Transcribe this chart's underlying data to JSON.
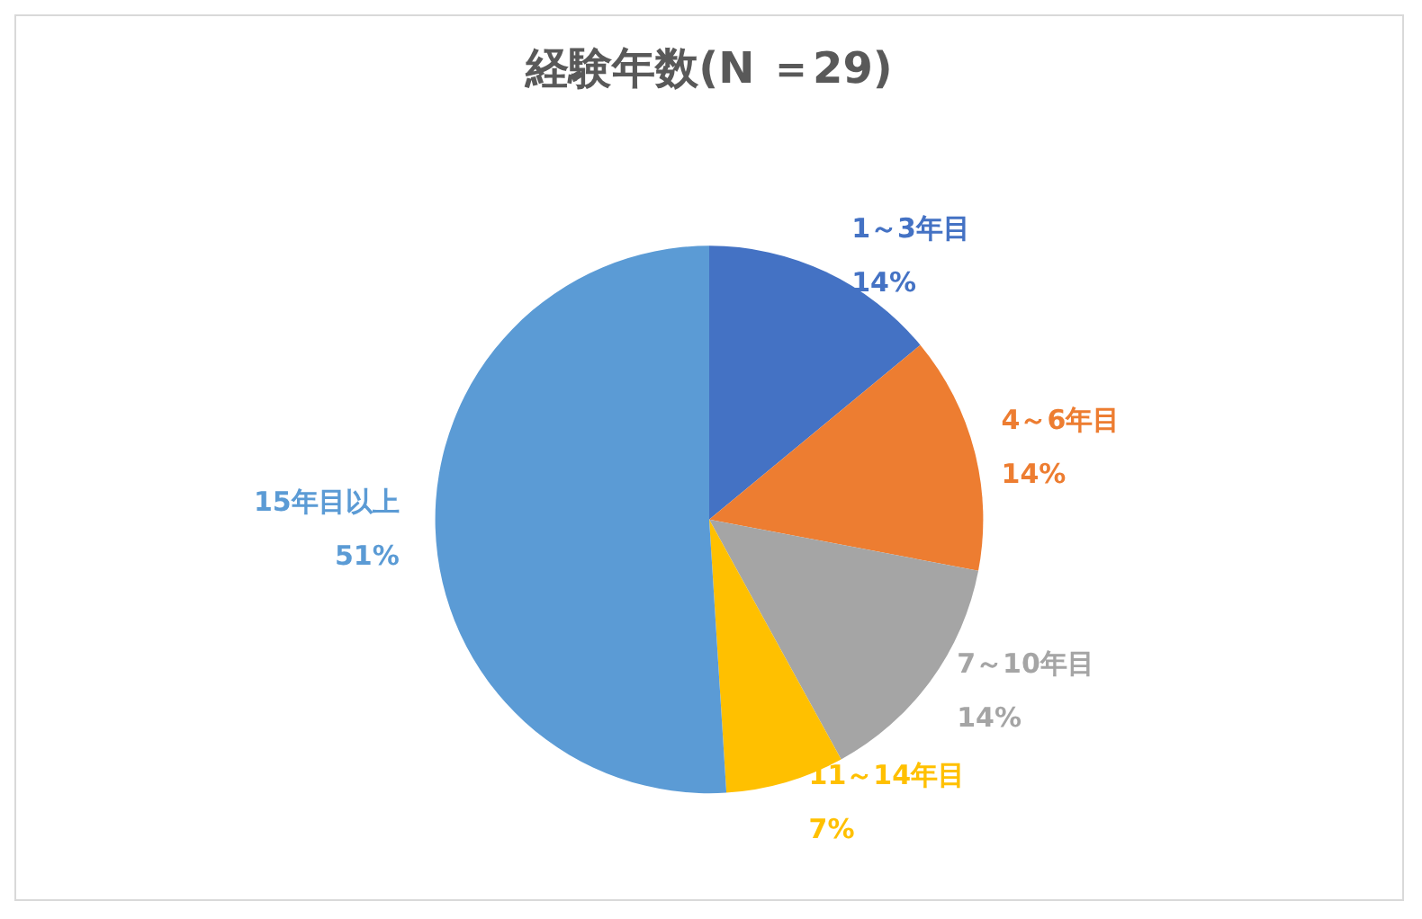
{
  "chart_data": {
    "type": "pie",
    "title": "経験年数(N ＝29)",
    "categories": [
      "1～3年目",
      "4～6年目",
      "7～10年目",
      "11～14年目",
      "15年目以上"
    ],
    "values": [
      14,
      14,
      14,
      7,
      51
    ],
    "value_labels": [
      "14%",
      "14%",
      "14%",
      "7%",
      "51%"
    ],
    "colors": [
      "#4472c4",
      "#ed7d31",
      "#a5a5a5",
      "#ffc000",
      "#5b9bd5"
    ],
    "legend": false
  }
}
